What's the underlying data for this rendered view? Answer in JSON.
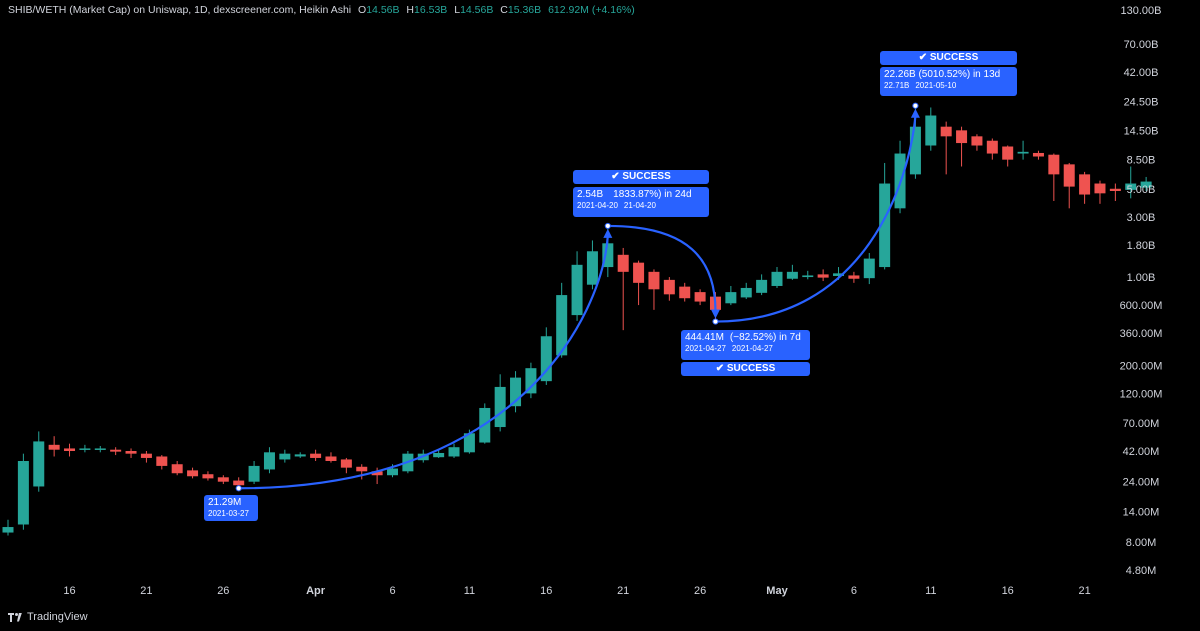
{
  "header": {
    "symbol": "SHIB/WETH (Market Cap) on Uniswap, 1D, dexscreener.com, Heikin Ashi",
    "o_label": "O",
    "o_value": "14.56B",
    "h_label": "H",
    "h_value": "16.53B",
    "l_label": "L",
    "l_value": "14.56B",
    "c_label": "C",
    "c_value": "15.36B",
    "change": "612.92M (+4.16%)"
  },
  "footer": {
    "brand": "TradingView"
  },
  "colors": {
    "up": "#26a69a",
    "down": "#ef5350",
    "accent": "#2962ff",
    "background": "#000000"
  },
  "annotations": {
    "a1": {
      "value": "21.29M",
      "date": "2021-03-27"
    },
    "a2": {
      "status": "✔ SUCCESS",
      "value": "2.54B",
      "change": "1833.87%) in 24d",
      "date": "2021-04-20",
      "date2": "21-04-20"
    },
    "a3": {
      "status": "✔ SUCCESS",
      "value": "444.41M",
      "change": "(−82.52%) in 7d",
      "date": "2021-04-27",
      "date2": "2021-04-27"
    },
    "a4": {
      "status": "✔ SUCCESS",
      "main": "22.26B (5010.52%) in 13d",
      "value": "22.71B",
      "date": "2021-05-10"
    }
  },
  "chart_data": {
    "type": "candlestick",
    "scale": "log",
    "grid": false,
    "y_axis_labels": [
      "130.00B",
      "70.00B",
      "42.00B",
      "24.50B",
      "14.50B",
      "8.50B",
      "5.00B",
      "3.00B",
      "1.80B",
      "1.00B",
      "600.00M",
      "360.00M",
      "200.00M",
      "120.00M",
      "70.00M",
      "42.00M",
      "24.00M",
      "14.00M",
      "8.00M",
      "4.80M"
    ],
    "x_axis_labels": [
      "16",
      "21",
      "26",
      "Apr",
      "6",
      "11",
      "16",
      "21",
      "26",
      "May",
      "6",
      "11",
      "16",
      "21"
    ],
    "x_tick_dates": [
      "2021-03-16",
      "2021-03-21",
      "2021-03-26",
      "2021-04-01",
      "2021-04-06",
      "2021-04-11",
      "2021-04-16",
      "2021-04-21",
      "2021-04-26",
      "2021-05-01",
      "2021-05-06",
      "2021-05-11",
      "2021-05-16",
      "2021-05-21"
    ],
    "candles": [
      {
        "date": "2021-03-12",
        "open": 9500000.0,
        "close": 10500000.0,
        "high": 12000000.0,
        "low": 9000000.0
      },
      {
        "date": "2021-03-13",
        "open": 11000000.0,
        "close": 35000000.0,
        "high": 40000000.0,
        "low": 10000000.0
      },
      {
        "date": "2021-03-14",
        "open": 22000000.0,
        "close": 50000000.0,
        "high": 60000000.0,
        "low": 20000000.0
      },
      {
        "date": "2021-03-15",
        "open": 47000000.0,
        "close": 43000000.0,
        "high": 55000000.0,
        "low": 38000000.0
      },
      {
        "date": "2021-03-16",
        "open": 44000000.0,
        "close": 42000000.0,
        "high": 48000000.0,
        "low": 38000000.0
      },
      {
        "date": "2021-03-17",
        "open": 43000000.0,
        "close": 44000000.0,
        "high": 47000000.0,
        "low": 41000000.0
      },
      {
        "date": "2021-03-18",
        "open": 43500000.0,
        "close": 44000000.0,
        "high": 46000000.0,
        "low": 41000000.0
      },
      {
        "date": "2021-03-19",
        "open": 43000000.0,
        "close": 41500000.0,
        "high": 45000000.0,
        "low": 39000000.0
      },
      {
        "date": "2021-03-20",
        "open": 42000000.0,
        "close": 40000000.0,
        "high": 44000000.0,
        "low": 37000000.0
      },
      {
        "date": "2021-03-21",
        "open": 40000000.0,
        "close": 37000000.0,
        "high": 42000000.0,
        "low": 34000000.0
      },
      {
        "date": "2021-03-22",
        "open": 38000000.0,
        "close": 32000000.0,
        "high": 39000000.0,
        "low": 30000000.0
      },
      {
        "date": "2021-03-23",
        "open": 33000000.0,
        "close": 28000000.0,
        "high": 35000000.0,
        "low": 27000000.0
      },
      {
        "date": "2021-03-24",
        "open": 29500000.0,
        "close": 26500000.0,
        "high": 31000000.0,
        "low": 25500000.0
      },
      {
        "date": "2021-03-25",
        "open": 27500000.0,
        "close": 25500000.0,
        "high": 29000000.0,
        "low": 24500000.0
      },
      {
        "date": "2021-03-26",
        "open": 26000000.0,
        "close": 24000000.0,
        "high": 27000000.0,
        "low": 23000000.0
      },
      {
        "date": "2021-03-27",
        "open": 24500000.0,
        "close": 22500000.0,
        "high": 26000000.0,
        "low": 21290000.0
      },
      {
        "date": "2021-03-28",
        "open": 24000000.0,
        "close": 32000000.0,
        "high": 35000000.0,
        "low": 23000000.0
      },
      {
        "date": "2021-03-29",
        "open": 30000000.0,
        "close": 41000000.0,
        "high": 45000000.0,
        "low": 28000000.0
      },
      {
        "date": "2021-03-30",
        "open": 36000000.0,
        "close": 40000000.0,
        "high": 43000000.0,
        "low": 34000000.0
      },
      {
        "date": "2021-03-31",
        "open": 38000000.0,
        "close": 39500000.0,
        "high": 41000000.0,
        "low": 37000000.0
      },
      {
        "date": "2021-04-01",
        "open": 40000000.0,
        "close": 37000000.0,
        "high": 43000000.0,
        "low": 35000000.0
      },
      {
        "date": "2021-04-02",
        "open": 38000000.0,
        "close": 35000000.0,
        "high": 41000000.0,
        "low": 34000000.0
      },
      {
        "date": "2021-04-03",
        "open": 36000000.0,
        "close": 31000000.0,
        "high": 37000000.0,
        "low": 28000000.0
      },
      {
        "date": "2021-04-04",
        "open": 31500000.0,
        "close": 29000000.0,
        "high": 33000000.0,
        "low": 25000000.0
      },
      {
        "date": "2021-04-05",
        "open": 29000000.0,
        "close": 27000000.0,
        "high": 31000000.0,
        "low": 23000000.0
      },
      {
        "date": "2021-04-06",
        "open": 27000000.0,
        "close": 30500000.0,
        "high": 33000000.0,
        "low": 26000000.0
      },
      {
        "date": "2021-04-07",
        "open": 29000000.0,
        "close": 40000000.0,
        "high": 42000000.0,
        "low": 28000000.0
      },
      {
        "date": "2021-04-08",
        "open": 35500000.0,
        "close": 40000000.0,
        "high": 43000000.0,
        "low": 34000000.0
      },
      {
        "date": "2021-04-09",
        "open": 37500000.0,
        "close": 40500000.0,
        "high": 43000000.0,
        "low": 37000000.0
      },
      {
        "date": "2021-04-10",
        "open": 38000000.0,
        "close": 45000000.0,
        "high": 48000000.0,
        "low": 37000000.0
      },
      {
        "date": "2021-04-11",
        "open": 41000000.0,
        "close": 58000000.0,
        "high": 62000000.0,
        "low": 40000000.0
      },
      {
        "date": "2021-04-12",
        "open": 49000000.0,
        "close": 92000000.0,
        "high": 100000000.0,
        "low": 48000000.0
      },
      {
        "date": "2021-04-13",
        "open": 65000000.0,
        "close": 135000000.0,
        "high": 170000000.0,
        "low": 60000000.0
      },
      {
        "date": "2021-04-14",
        "open": 95000000.0,
        "close": 160000000.0,
        "high": 180000000.0,
        "low": 85000000.0
      },
      {
        "date": "2021-04-15",
        "open": 120000000.0,
        "close": 190000000.0,
        "high": 210000000.0,
        "low": 110000000.0
      },
      {
        "date": "2021-04-16",
        "open": 150000000.0,
        "close": 340000000.0,
        "high": 400000000.0,
        "low": 140000000.0
      },
      {
        "date": "2021-04-17",
        "open": 240000000.0,
        "close": 720000000.0,
        "high": 900000000.0,
        "low": 230000000.0
      },
      {
        "date": "2021-04-18",
        "open": 500000000.0,
        "close": 1250000000.0,
        "high": 1600000000.0,
        "low": 450000000.0
      },
      {
        "date": "2021-04-19",
        "open": 870000000.0,
        "close": 1600000000.0,
        "high": 1950000000.0,
        "low": 800000000.0
      },
      {
        "date": "2021-04-20",
        "open": 1200000000.0,
        "close": 1850000000.0,
        "high": 2540000000.0,
        "low": 1000000000.0
      },
      {
        "date": "2021-04-21",
        "open": 1500000000.0,
        "close": 1100000000.0,
        "high": 1700000000.0,
        "low": 380000000.0
      },
      {
        "date": "2021-04-22",
        "open": 1300000000.0,
        "close": 900000000.0,
        "high": 1350000000.0,
        "low": 600000000.0
      },
      {
        "date": "2021-04-23",
        "open": 1100000000.0,
        "close": 800000000.0,
        "high": 1150000000.0,
        "low": 550000000.0
      },
      {
        "date": "2021-04-24",
        "open": 950000000.0,
        "close": 730000000.0,
        "high": 1000000000.0,
        "low": 650000000.0
      },
      {
        "date": "2021-04-25",
        "open": 840000000.0,
        "close": 680000000.0,
        "high": 900000000.0,
        "low": 640000000.0
      },
      {
        "date": "2021-04-26",
        "open": 760000000.0,
        "close": 640000000.0,
        "high": 800000000.0,
        "low": 600000000.0
      },
      {
        "date": "2021-04-27",
        "open": 700000000.0,
        "close": 550000000.0,
        "high": 760000000.0,
        "low": 444410000.0
      },
      {
        "date": "2021-04-28",
        "open": 620000000.0,
        "close": 760000000.0,
        "high": 850000000.0,
        "low": 600000000.0
      },
      {
        "date": "2021-04-29",
        "open": 690000000.0,
        "close": 820000000.0,
        "high": 900000000.0,
        "low": 670000000.0
      },
      {
        "date": "2021-04-30",
        "open": 750000000.0,
        "close": 950000000.0,
        "high": 1050000000.0,
        "low": 720000000.0
      },
      {
        "date": "2021-05-01",
        "open": 850000000.0,
        "close": 1100000000.0,
        "high": 1200000000.0,
        "low": 820000000.0
      },
      {
        "date": "2021-05-02",
        "open": 970000000.0,
        "close": 1100000000.0,
        "high": 1250000000.0,
        "low": 950000000.0
      },
      {
        "date": "2021-05-03",
        "open": 1000000000.0,
        "close": 1030000000.0,
        "high": 1120000000.0,
        "low": 960000000.0
      },
      {
        "date": "2021-05-04",
        "open": 1050000000.0,
        "close": 990000000.0,
        "high": 1150000000.0,
        "low": 930000000.0
      },
      {
        "date": "2021-05-05",
        "open": 1020000000.0,
        "close": 1070000000.0,
        "high": 1200000000.0,
        "low": 950000000.0
      },
      {
        "date": "2021-05-06",
        "open": 1030000000.0,
        "close": 970000000.0,
        "high": 1100000000.0,
        "low": 900000000.0
      },
      {
        "date": "2021-05-07",
        "open": 980000000.0,
        "close": 1400000000.0,
        "high": 1550000000.0,
        "low": 880000000.0
      },
      {
        "date": "2021-05-08",
        "open": 1200000000.0,
        "close": 5500000000.0,
        "high": 8000000000.0,
        "low": 1150000000.0
      },
      {
        "date": "2021-05-09",
        "open": 3500000000.0,
        "close": 9500000000.0,
        "high": 12000000000.0,
        "low": 3200000000.0
      },
      {
        "date": "2021-05-10",
        "open": 6500000000.0,
        "close": 15500000000.0,
        "high": 22710000000.0,
        "low": 6000000000.0
      },
      {
        "date": "2021-05-11",
        "open": 11000000000.0,
        "close": 19000000000.0,
        "high": 22000000000.0,
        "low": 10000000000.0
      },
      {
        "date": "2021-05-12",
        "open": 15500000000.0,
        "close": 13000000000.0,
        "high": 17000000000.0,
        "low": 6500000000.0
      },
      {
        "date": "2021-05-13",
        "open": 14500000000.0,
        "close": 11500000000.0,
        "high": 15500000000.0,
        "low": 7500000000.0
      },
      {
        "date": "2021-05-14",
        "open": 13000000000.0,
        "close": 11000000000.0,
        "high": 13500000000.0,
        "low": 10000000000.0
      },
      {
        "date": "2021-05-15",
        "open": 12000000000.0,
        "close": 9500000000.0,
        "high": 12500000000.0,
        "low": 8500000000.0
      },
      {
        "date": "2021-05-16",
        "open": 10800000000.0,
        "close": 8500000000.0,
        "high": 11000000000.0,
        "low": 7500000000.0
      },
      {
        "date": "2021-05-17",
        "open": 9500000000.0,
        "close": 9800000000.0,
        "high": 12000000000.0,
        "low": 8500000000.0
      },
      {
        "date": "2021-05-18",
        "open": 9600000000.0,
        "close": 9000000000.0,
        "high": 10000000000.0,
        "low": 8500000000.0
      },
      {
        "date": "2021-05-19",
        "open": 9300000000.0,
        "close": 6500000000.0,
        "high": 9500000000.0,
        "low": 4000000000.0
      },
      {
        "date": "2021-05-20",
        "open": 7800000000.0,
        "close": 5200000000.0,
        "high": 8000000000.0,
        "low": 3500000000.0
      },
      {
        "date": "2021-05-21",
        "open": 6500000000.0,
        "close": 4500000000.0,
        "high": 6800000000.0,
        "low": 3800000000.0
      },
      {
        "date": "2021-05-22",
        "open": 5500000000.0,
        "close": 4600000000.0,
        "high": 5800000000.0,
        "low": 3800000000.0
      },
      {
        "date": "2021-05-23",
        "open": 5000000000.0,
        "close": 4800000000.0,
        "high": 5500000000.0,
        "low": 4000000000.0
      },
      {
        "date": "2021-05-24",
        "open": 4900000000.0,
        "close": 5500000000.0,
        "high": 7500000000.0,
        "low": 4200000000.0
      },
      {
        "date": "2021-05-25",
        "open": 5100000000.0,
        "close": 5700000000.0,
        "high": 6200000000.0,
        "low": 4800000000.0
      }
    ],
    "arcs": [
      {
        "from": {
          "date": "2021-03-27",
          "value": 21290000.0
        },
        "to": {
          "date": "2021-04-20",
          "value": 2540000000.0
        }
      },
      {
        "from": {
          "date": "2021-04-20",
          "value": 2540000000.0
        },
        "to": {
          "date": "2021-04-27",
          "value": 444410000.0
        }
      },
      {
        "from": {
          "date": "2021-04-27",
          "value": 444410000.0
        },
        "to": {
          "date": "2021-05-10",
          "value": 22710000000.0
        }
      }
    ]
  }
}
